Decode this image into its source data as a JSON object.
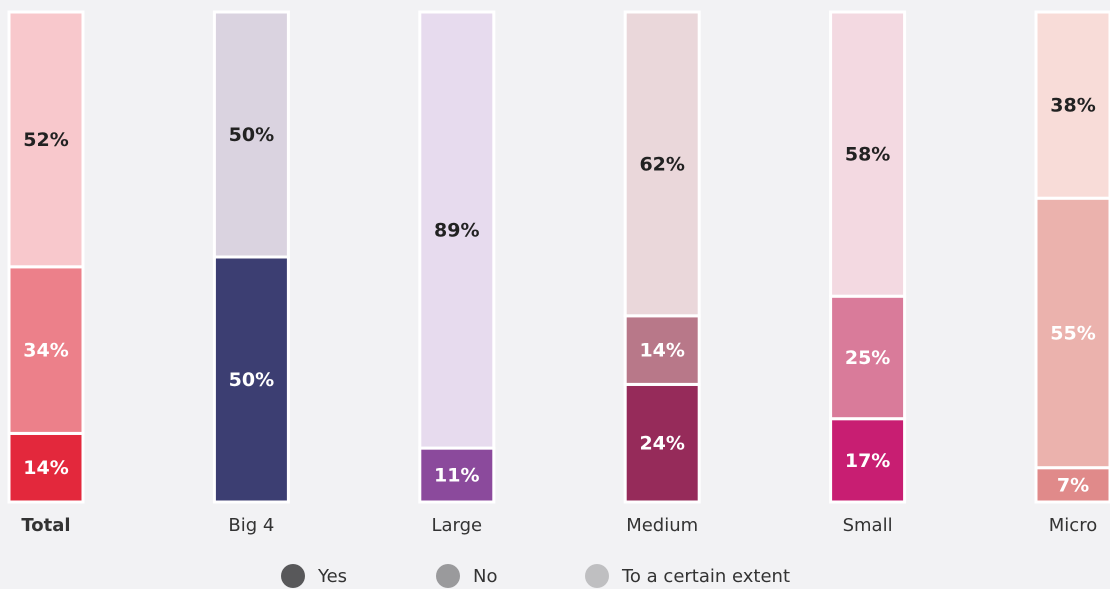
{
  "chart_data": {
    "type": "stacked_bar",
    "categories": [
      "Total",
      "Big 4",
      "Large",
      "Medium",
      "Small",
      "Micro"
    ],
    "series": [
      {
        "name": "Yes",
        "color": "#58585a",
        "text_color": "#ffffff",
        "values": [
          14,
          50,
          11,
          24,
          17,
          7
        ],
        "value_labels": [
          "14%",
          "50%",
          "11%",
          "24%",
          "17%",
          "7%"
        ],
        "bar_colors": [
          "#e3283c",
          "#3c3e72",
          "#8b4a9c",
          "#962b5a",
          "#c81e72",
          "#e08a8a"
        ]
      },
      {
        "name": "No",
        "color": "#9a9a9c",
        "text_color": "#ffffff",
        "values": [
          34,
          0,
          0,
          14,
          25,
          55
        ],
        "value_labels": [
          "34%",
          null,
          null,
          "14%",
          "25%",
          "55%"
        ],
        "bar_colors": [
          "#ec808a",
          "#dad3e0",
          "#e7dbee",
          "#b87889",
          "#d97b9a",
          "#ebb2ad"
        ]
      },
      {
        "name": "To a certain extent",
        "color": "#bfbfc1",
        "text_color": "#222222",
        "values": [
          52,
          50,
          89,
          62,
          58,
          38
        ],
        "value_labels": [
          "52%",
          "50%",
          "89%",
          "62%",
          "58%",
          "38%"
        ],
        "bar_colors": [
          "#f8c8cc",
          "#dad3e0",
          "#e7dbee",
          "#ead7da",
          "#f3d9e1",
          "#f8dcd8"
        ]
      }
    ]
  }
}
